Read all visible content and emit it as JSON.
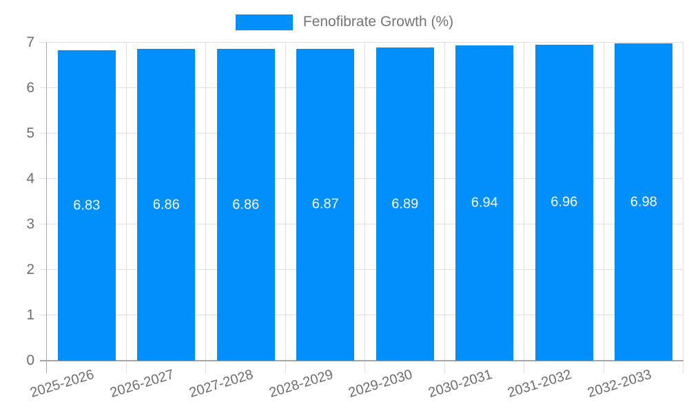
{
  "colors": {
    "bar": "#008FFB",
    "grid": "#e0e0e0",
    "axis": "#a6a6a6",
    "tick_text": "#6e6e6e",
    "legend_text": "#757575",
    "value_text": "#ffffff",
    "background": "#ffffff"
  },
  "chart_data": {
    "type": "bar",
    "title": "",
    "xlabel": "",
    "ylabel": "",
    "categories": [
      "2025-2026",
      "2026-2027",
      "2027-2028",
      "2028-2029",
      "2029-2030",
      "2030-2031",
      "2031-2032",
      "2032-2033"
    ],
    "series": [
      {
        "name": "Fenofibrate Growth (%)",
        "values": [
          6.83,
          6.86,
          6.86,
          6.87,
          6.89,
          6.94,
          6.96,
          6.98
        ]
      }
    ],
    "value_labels": [
      "6.83",
      "6.86",
      "6.86",
      "6.87",
      "6.89",
      "6.94",
      "6.96",
      "6.98"
    ],
    "ylim": [
      0,
      7
    ],
    "yticks": [
      0,
      1,
      2,
      3,
      4,
      5,
      6,
      7
    ],
    "grid": true,
    "legend_position": "top",
    "xtick_rotation_deg": -17
  }
}
